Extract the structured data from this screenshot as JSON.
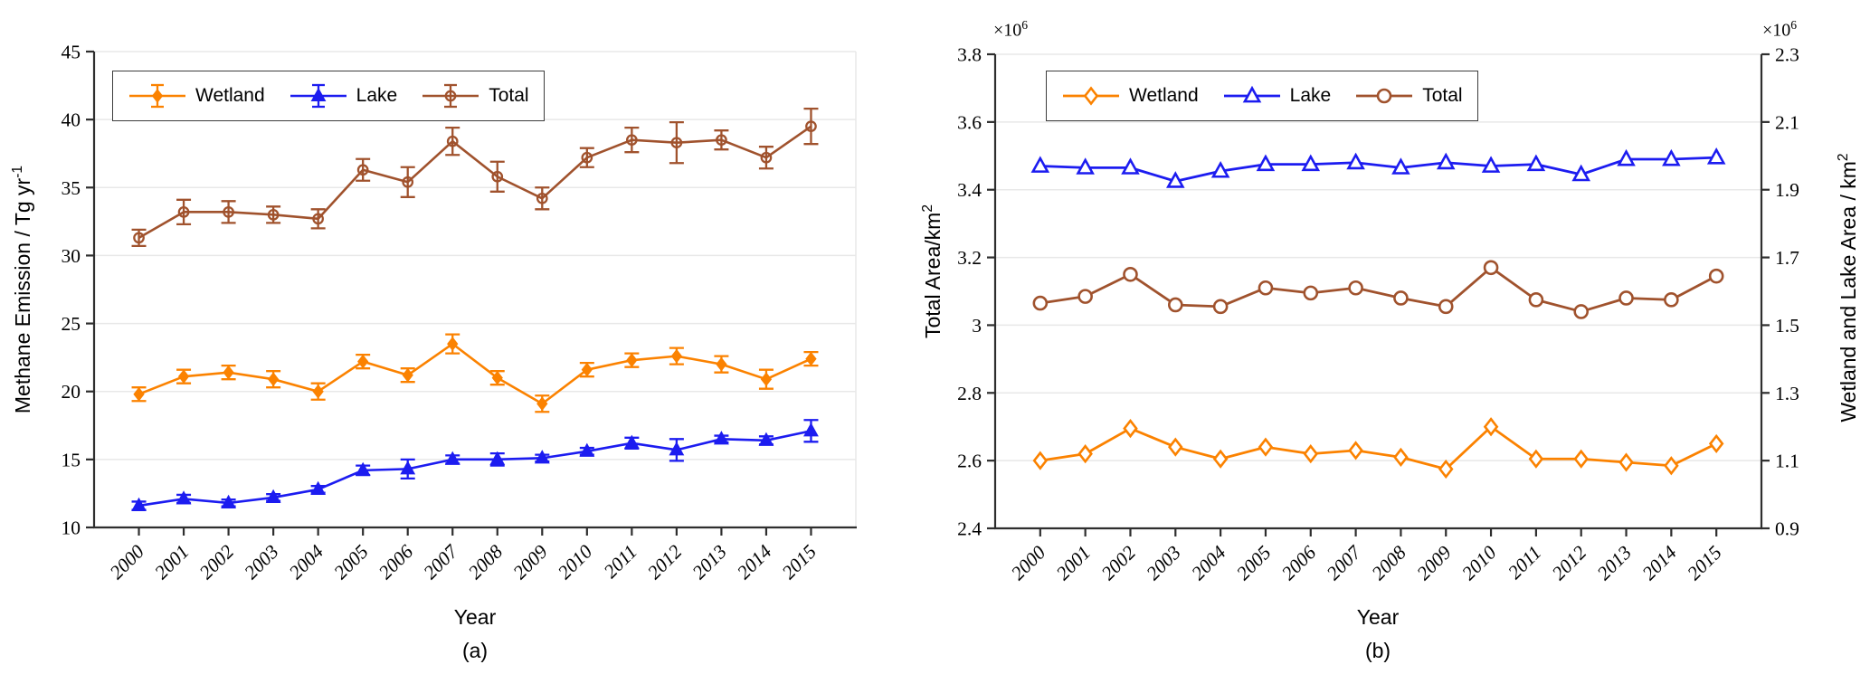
{
  "figure": {
    "background": "#FFFFFF",
    "grid_color": "#E8E8E8",
    "axis_color": "#2E2E2E",
    "colors": {
      "wetland": "#FB8200",
      "lake": "#1C1CF0",
      "total": "#A0522D"
    }
  },
  "chart_data": [
    {
      "type": "line",
      "panel": "(a)",
      "xlabel": "Year",
      "ylabel_main": "Methane Emission / Tg yr",
      "ylabel_sup": "-1",
      "x": [
        "2000",
        "2001",
        "2002",
        "2003",
        "2004",
        "2005",
        "2006",
        "2007",
        "2008",
        "2009",
        "2010",
        "2011",
        "2012",
        "2013",
        "2014",
        "2015"
      ],
      "ylim": [
        10,
        45
      ],
      "ytick_labels": [
        "10",
        "15",
        "20",
        "25",
        "30",
        "35",
        "40",
        "45"
      ],
      "grid": "horizontal",
      "legend_position": "top-left",
      "legend": [
        "Wetland",
        "Lake",
        "Total"
      ],
      "series": [
        {
          "name": "Wetland",
          "color": "#FB8200",
          "marker": "diamond",
          "fill": "solid",
          "values": [
            19.8,
            21.1,
            21.4,
            20.9,
            20.0,
            22.2,
            21.2,
            23.5,
            21.0,
            19.1,
            21.6,
            22.3,
            22.6,
            22.0,
            20.9,
            22.4
          ],
          "errors": [
            0.5,
            0.5,
            0.5,
            0.6,
            0.6,
            0.5,
            0.5,
            0.7,
            0.5,
            0.6,
            0.5,
            0.5,
            0.6,
            0.6,
            0.7,
            0.5
          ]
        },
        {
          "name": "Lake",
          "color": "#1C1CF0",
          "marker": "triangle",
          "fill": "solid",
          "values": [
            11.6,
            12.1,
            11.8,
            12.2,
            12.8,
            14.2,
            14.3,
            15.0,
            15.0,
            15.1,
            15.6,
            16.2,
            15.7,
            16.5,
            16.4,
            17.1
          ],
          "errors": [
            0.3,
            0.3,
            0.25,
            0.25,
            0.25,
            0.35,
            0.7,
            0.3,
            0.45,
            0.25,
            0.25,
            0.4,
            0.8,
            0.25,
            0.3,
            0.8
          ]
        },
        {
          "name": "Total",
          "color": "#A0522D",
          "marker": "circle",
          "fill": "open",
          "values": [
            31.3,
            33.2,
            33.2,
            33.0,
            32.7,
            36.3,
            35.4,
            38.4,
            35.8,
            34.2,
            37.2,
            38.5,
            38.3,
            38.5,
            37.2,
            39.5
          ],
          "errors": [
            0.6,
            0.9,
            0.8,
            0.6,
            0.7,
            0.8,
            1.1,
            1.0,
            1.1,
            0.8,
            0.7,
            0.9,
            1.5,
            0.7,
            0.8,
            1.3
          ]
        }
      ]
    },
    {
      "type": "line",
      "panel": "(b)",
      "xlabel": "Year",
      "ylabel_left_main": "Total Area/km",
      "ylabel_left_sup": "2",
      "ylabel_right_main": "Wetland and Lake Area / km",
      "ylabel_right_sup": "2",
      "scale_label_main": "×10",
      "scale_label_sup": "6",
      "x": [
        "2000",
        "2001",
        "2002",
        "2003",
        "2004",
        "2005",
        "2006",
        "2007",
        "2008",
        "2009",
        "2010",
        "2011",
        "2012",
        "2013",
        "2014",
        "2015"
      ],
      "ylim_left": [
        2.4,
        3.8
      ],
      "ytick_left_labels": [
        "2.4",
        "2.6",
        "2.8",
        "3",
        "3.2",
        "3.4",
        "3.6",
        "3.8"
      ],
      "ylim_right": [
        0.9,
        2.3
      ],
      "ytick_right_labels": [
        "0.9",
        "1.1",
        "1.3",
        "1.5",
        "1.7",
        "1.9",
        "2.1",
        "2.3"
      ],
      "grid": "horizontal",
      "legend_position": "top-left",
      "legend": [
        "Wetland",
        "Lake",
        "Total"
      ],
      "series": [
        {
          "name": "Wetland",
          "axis": "right",
          "color": "#FB8200",
          "marker": "diamond",
          "fill": "open",
          "values": [
            1.1,
            1.12,
            1.195,
            1.14,
            1.105,
            1.14,
            1.12,
            1.13,
            1.11,
            1.075,
            1.2,
            1.105,
            1.105,
            1.095,
            1.085,
            1.15
          ]
        },
        {
          "name": "Lake",
          "axis": "right",
          "color": "#1C1CF0",
          "marker": "triangle",
          "fill": "open",
          "values": [
            1.97,
            1.965,
            1.965,
            1.925,
            1.955,
            1.975,
            1.975,
            1.98,
            1.965,
            1.98,
            1.97,
            1.975,
            1.945,
            1.99,
            1.99,
            1.995
          ]
        },
        {
          "name": "Total",
          "axis": "left",
          "color": "#A0522D",
          "marker": "circle",
          "fill": "open",
          "values": [
            3.065,
            3.085,
            3.15,
            3.06,
            3.055,
            3.11,
            3.095,
            3.11,
            3.08,
            3.055,
            3.17,
            3.075,
            3.04,
            3.08,
            3.075,
            3.145
          ]
        }
      ]
    }
  ]
}
